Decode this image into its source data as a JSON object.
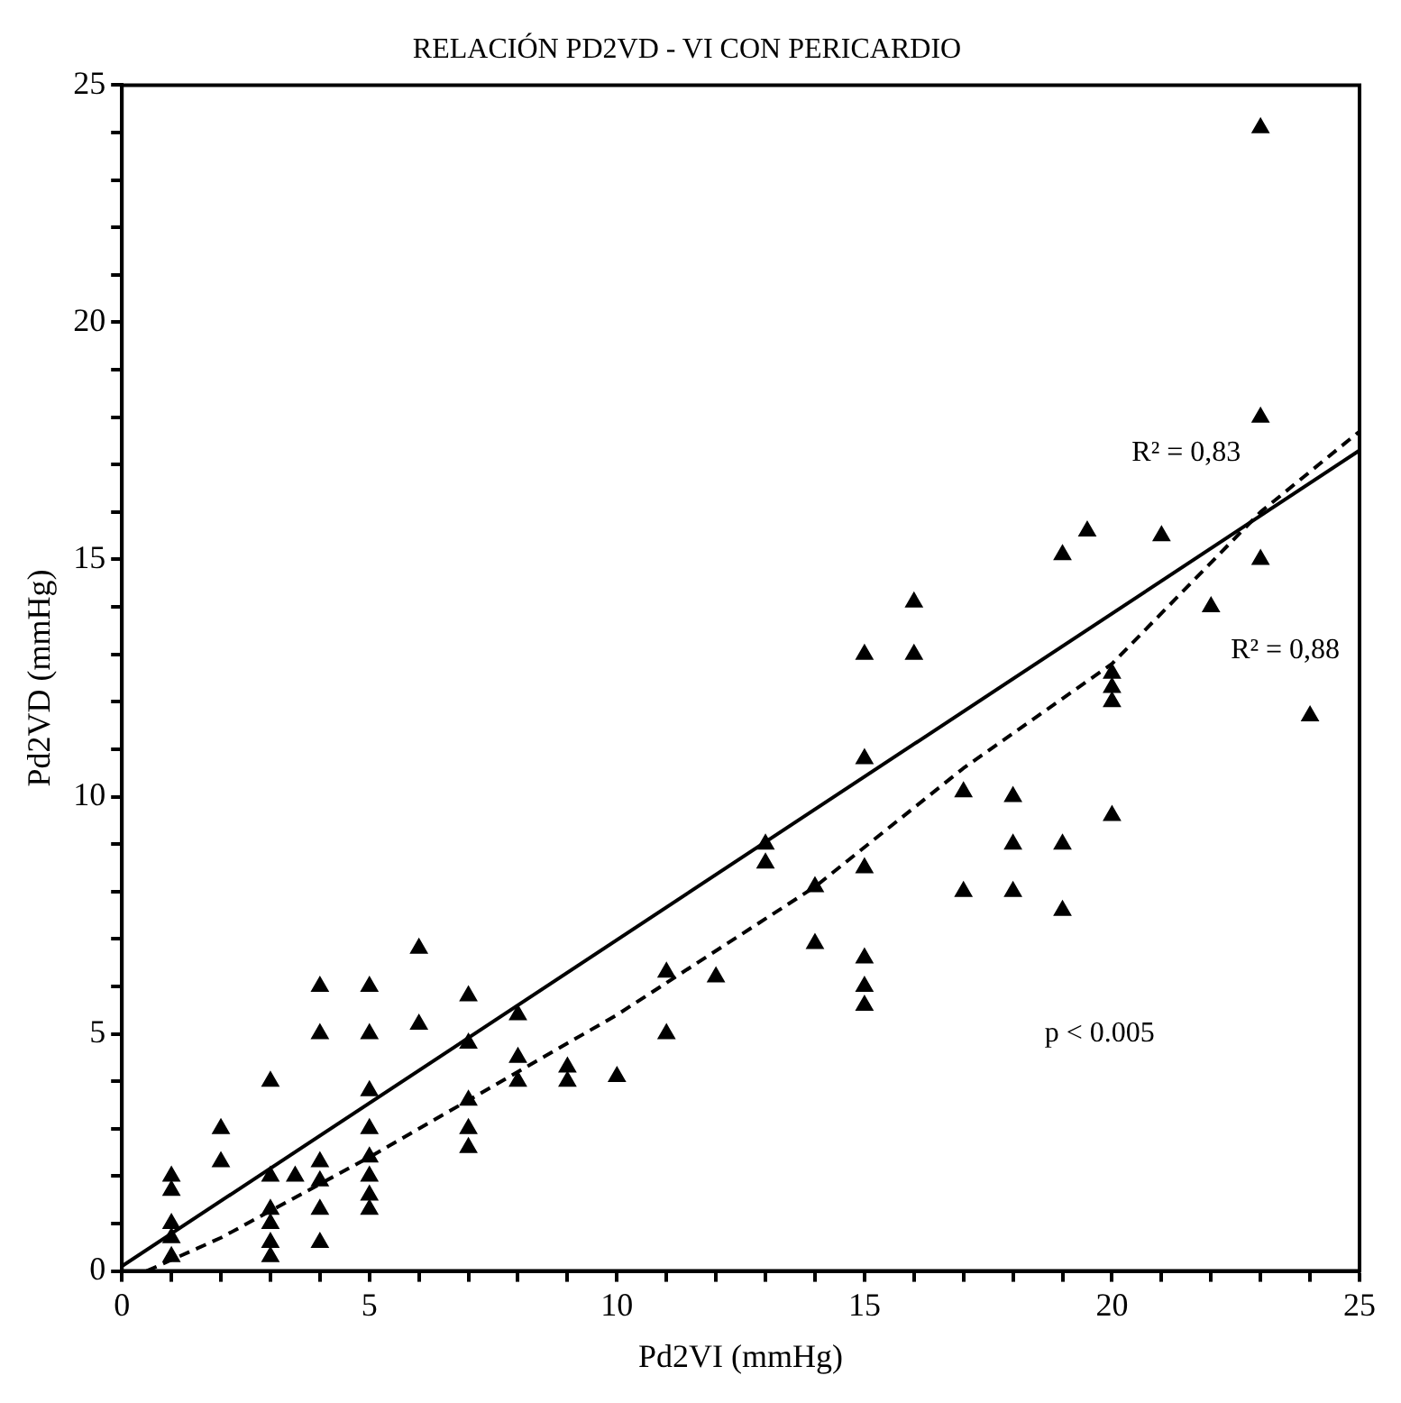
{
  "chart_data": {
    "type": "scatter",
    "title": "RELACIÓN PD2VD - VI CON PERICARDIO",
    "xlabel": "Pd2VI (mmHg)",
    "ylabel": "Pd2VD (mmHg)",
    "xlim": [
      0,
      25
    ],
    "ylim": [
      0,
      25
    ],
    "xticks": [
      0,
      {
        "value": 1,
        "label": null
      },
      {
        "value": 2,
        "label": null
      },
      {
        "value": 3,
        "label": null
      },
      {
        "value": 4,
        "label": null
      },
      5,
      {
        "value": 6,
        "label": null
      },
      {
        "value": 7,
        "label": null
      },
      {
        "value": 8,
        "label": null
      },
      {
        "value": 9,
        "label": null
      },
      10,
      {
        "value": 11,
        "label": null
      },
      {
        "value": 12,
        "label": null
      },
      {
        "value": 13,
        "label": null
      },
      {
        "value": 14,
        "label": null
      },
      15,
      {
        "value": 16,
        "label": null
      },
      {
        "value": 17,
        "label": null
      },
      {
        "value": 18,
        "label": null
      },
      {
        "value": 19,
        "label": null
      },
      20,
      {
        "value": 21,
        "label": null
      },
      {
        "value": 22,
        "label": null
      },
      {
        "value": 23,
        "label": null
      },
      {
        "value": 24,
        "label": null
      },
      25
    ],
    "yticks": [
      0,
      {
        "value": 1,
        "label": null
      },
      {
        "value": 2,
        "label": null
      },
      {
        "value": 3,
        "label": null
      },
      {
        "value": 4,
        "label": null
      },
      5,
      {
        "value": 6,
        "label": null
      },
      {
        "value": 7,
        "label": null
      },
      {
        "value": 8,
        "label": null
      },
      {
        "value": 9,
        "label": null
      },
      10,
      {
        "value": 11,
        "label": null
      },
      {
        "value": 12,
        "label": null
      },
      {
        "value": 13,
        "label": null
      },
      {
        "value": 14,
        "label": null
      },
      15,
      {
        "value": 16,
        "label": null
      },
      {
        "value": 17,
        "label": null
      },
      {
        "value": 18,
        "label": null
      },
      {
        "value": 19,
        "label": null
      },
      20,
      {
        "value": 21,
        "label": null
      },
      {
        "value": 22,
        "label": null
      },
      {
        "value": 23,
        "label": null
      },
      {
        "value": 24,
        "label": null
      },
      25
    ],
    "grid": false,
    "legend": false,
    "marker": "triangle",
    "series": [
      {
        "type": "scatter",
        "color": "#000000",
        "x": [
          1,
          1,
          1,
          1,
          1,
          2,
          2,
          3,
          3,
          3,
          3,
          3,
          3,
          3.5,
          4,
          4,
          4,
          4,
          4,
          4,
          5,
          5,
          5,
          5,
          5,
          5,
          5,
          5,
          6,
          6,
          7,
          7,
          7,
          7,
          7,
          8,
          8,
          8,
          9,
          9,
          10,
          11,
          11,
          12,
          13,
          13,
          14,
          14,
          15,
          15,
          15,
          15,
          15,
          15,
          16,
          16,
          17,
          17,
          18,
          18,
          18,
          19,
          19,
          19,
          19.5,
          20,
          20,
          20,
          20,
          21,
          22,
          23,
          23,
          23,
          24
        ],
        "values": [
          2.0,
          1.7,
          1.0,
          0.7,
          0.3,
          3.0,
          2.3,
          4.0,
          2.0,
          1.3,
          1.0,
          0.6,
          0.3,
          2.0,
          6.0,
          5.0,
          2.3,
          1.9,
          1.3,
          0.6,
          6.0,
          5.0,
          3.8,
          3.0,
          2.4,
          2.0,
          1.6,
          1.3,
          6.8,
          5.2,
          5.8,
          4.8,
          3.6,
          3.0,
          2.6,
          5.4,
          4.5,
          4.0,
          4.3,
          4.0,
          4.1,
          6.3,
          5.0,
          6.2,
          9.0,
          8.6,
          8.1,
          6.9,
          13.0,
          10.8,
          8.5,
          6.6,
          6.0,
          5.6,
          14.1,
          13.0,
          10.1,
          8.0,
          10.0,
          9.0,
          8.0,
          15.1,
          9.0,
          7.6,
          15.6,
          12.6,
          12.3,
          12.0,
          9.6,
          15.5,
          14.0,
          24.1,
          18.0,
          15.0,
          11.7
        ]
      },
      {
        "type": "line",
        "color": "#000000",
        "line_style": "solid",
        "marker": "none",
        "x": [
          0,
          25
        ],
        "values": [
          0.1,
          17.3
        ]
      },
      {
        "type": "line",
        "color": "#000000",
        "line_style": "dashed",
        "marker": "none",
        "x": [
          0.5,
          2,
          5,
          10,
          14,
          17,
          20,
          23,
          25
        ],
        "values": [
          0,
          0.7,
          2.4,
          5.4,
          8.1,
          10.6,
          12.8,
          16.0,
          17.7
        ]
      }
    ],
    "annotations": [
      "R² = 0,83",
      "R² = 0,88",
      "p < 0.005"
    ]
  }
}
